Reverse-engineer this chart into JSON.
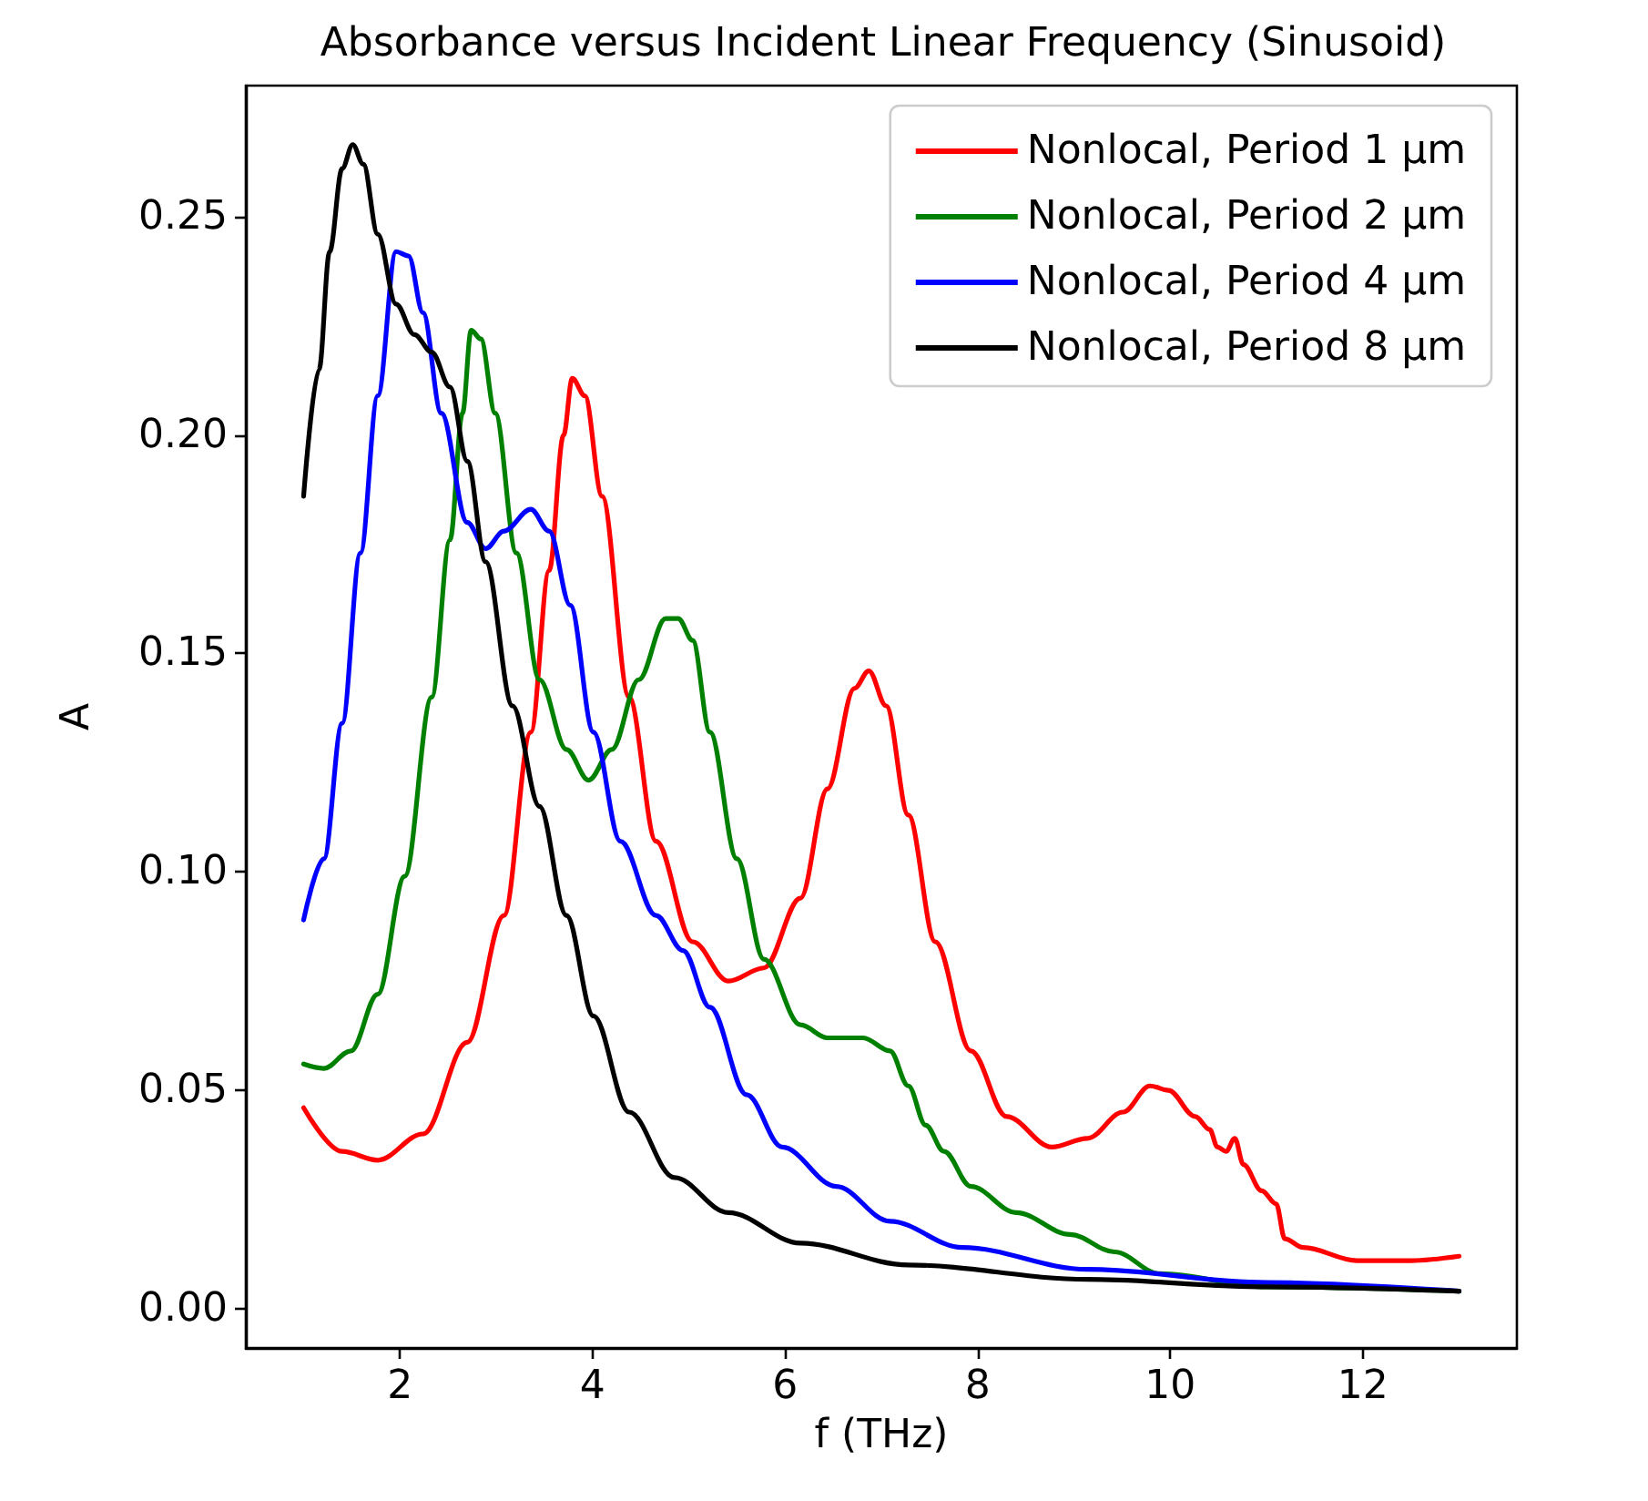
{
  "chart_data": {
    "type": "line",
    "title": "Absorbance versus Incident Linear Frequency (Sinusoid)",
    "xlabel": "f (THz)",
    "ylabel": "A",
    "xlim": [
      0.4,
      13.6
    ],
    "xticks": [
      2,
      4,
      6,
      8,
      10,
      12
    ],
    "ylim": [
      -0.009,
      0.28
    ],
    "yticks": [
      {
        "value": 0,
        "label": "0.00"
      },
      {
        "value": 0.05,
        "label": "0.05"
      },
      {
        "value": 0.1,
        "label": "0.10"
      },
      {
        "value": 0.15,
        "label": "0.15"
      },
      {
        "value": 0.2,
        "label": "0.20"
      },
      {
        "value": 0.25,
        "label": "0.25"
      }
    ],
    "grid": false,
    "legend": "top right",
    "marker": "none",
    "line_style": "solid",
    "series": [
      {
        "name": "Nonlocal, Period 1 μm",
        "color": "#ff0000",
        "x": [
          1,
          1.4,
          1.77,
          2.24,
          2.7,
          3.08,
          3.36,
          3.55,
          3.7,
          3.79,
          3.92,
          4.1,
          4.38,
          4.66,
          5.04,
          5.41,
          5.78,
          6.16,
          6.44,
          6.72,
          6.87,
          7.05,
          7.28,
          7.56,
          7.93,
          8.3,
          8.77,
          9.14,
          9.51,
          9.79,
          9.98,
          10.26,
          10.41,
          10.49,
          10.58,
          10.67,
          10.76,
          10.95,
          11.1,
          11.19,
          11.38,
          11.94,
          12.5,
          13
        ],
        "values": [
          0.046,
          0.036,
          0.034,
          0.04,
          0.061,
          0.09,
          0.132,
          0.169,
          0.2,
          0.213,
          0.209,
          0.186,
          0.14,
          0.107,
          0.084,
          0.075,
          0.078,
          0.094,
          0.119,
          0.142,
          0.146,
          0.138,
          0.113,
          0.084,
          0.059,
          0.044,
          0.037,
          0.039,
          0.045,
          0.051,
          0.05,
          0.044,
          0.041,
          0.037,
          0.036,
          0.039,
          0.033,
          0.027,
          0.024,
          0.016,
          0.014,
          0.011,
          0.011,
          0.012
        ]
      },
      {
        "name": "Nonlocal, Period 2 μm",
        "color": "#008000",
        "x": [
          1,
          1.21,
          1.49,
          1.77,
          2.05,
          2.33,
          2.52,
          2.65,
          2.74,
          2.84,
          2.99,
          3.21,
          3.45,
          3.73,
          3.96,
          4.2,
          4.48,
          4.76,
          4.89,
          5.04,
          5.22,
          5.5,
          5.78,
          6.16,
          6.44,
          6.81,
          7.09,
          7.28,
          7.46,
          7.65,
          7.93,
          8.4,
          8.96,
          9.42,
          9.89,
          11,
          13
        ],
        "values": [
          0.056,
          0.055,
          0.059,
          0.072,
          0.099,
          0.14,
          0.176,
          0.205,
          0.224,
          0.222,
          0.205,
          0.173,
          0.144,
          0.128,
          0.121,
          0.128,
          0.144,
          0.158,
          0.158,
          0.153,
          0.132,
          0.103,
          0.08,
          0.065,
          0.062,
          0.062,
          0.059,
          0.051,
          0.042,
          0.036,
          0.028,
          0.022,
          0.017,
          0.013,
          0.008,
          0.005,
          0.004
        ]
      },
      {
        "name": "Nonlocal, Period 4 μm",
        "color": "#0000ff",
        "x": [
          1,
          1.21,
          1.4,
          1.59,
          1.77,
          1.96,
          2.09,
          2.24,
          2.43,
          2.7,
          2.89,
          3.08,
          3.36,
          3.55,
          3.77,
          4.01,
          4.29,
          4.66,
          4.94,
          5.22,
          5.6,
          5.97,
          6.53,
          7.09,
          7.84,
          9.14,
          11,
          13
        ],
        "values": [
          0.089,
          0.103,
          0.134,
          0.173,
          0.209,
          0.242,
          0.241,
          0.228,
          0.205,
          0.18,
          0.174,
          0.178,
          0.183,
          0.178,
          0.161,
          0.132,
          0.107,
          0.09,
          0.082,
          0.069,
          0.049,
          0.037,
          0.028,
          0.02,
          0.014,
          0.009,
          0.006,
          0.004
        ]
      },
      {
        "name": "Nonlocal, Period 8 μm",
        "color": "#000000",
        "x": [
          1,
          1.16,
          1.27,
          1.4,
          1.51,
          1.62,
          1.77,
          1.96,
          2.15,
          2.33,
          2.52,
          2.7,
          2.89,
          3.17,
          3.45,
          3.73,
          4.01,
          4.38,
          4.85,
          5.41,
          6.16,
          7.28,
          9.14,
          11,
          13
        ],
        "values": [
          0.186,
          0.215,
          0.242,
          0.261,
          0.2665,
          0.262,
          0.246,
          0.23,
          0.223,
          0.219,
          0.211,
          0.194,
          0.171,
          0.138,
          0.115,
          0.09,
          0.067,
          0.045,
          0.03,
          0.022,
          0.015,
          0.01,
          0.0067,
          0.005,
          0.004
        ]
      }
    ]
  }
}
